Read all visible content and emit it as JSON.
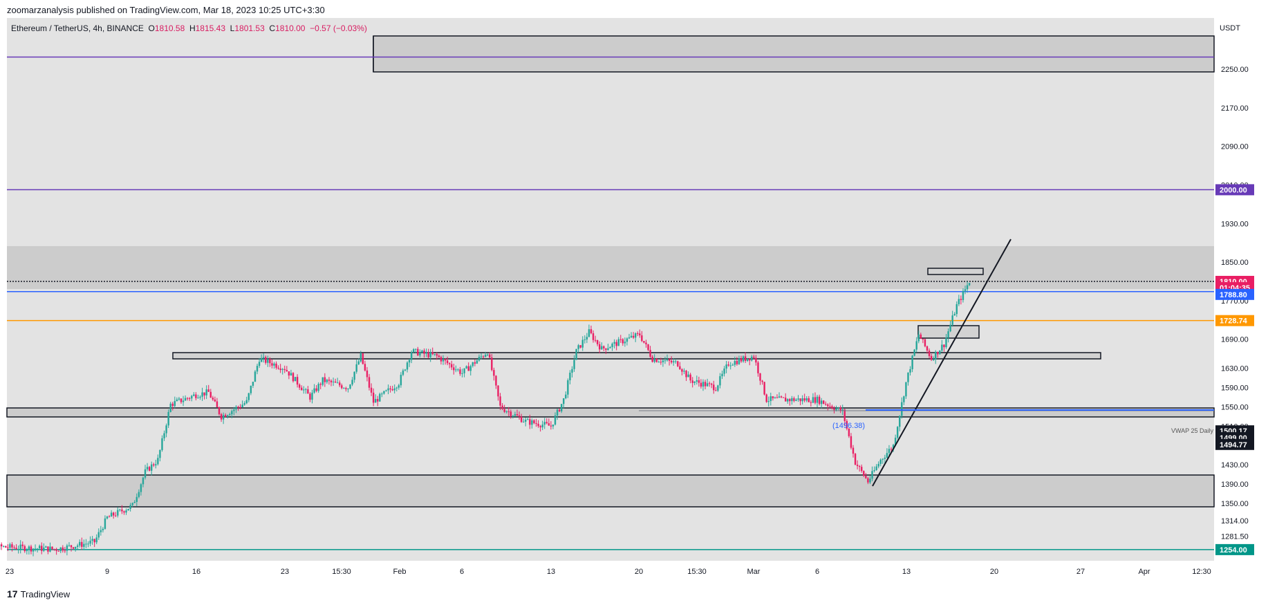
{
  "header": {
    "publisher": "zoomarzanalysis published on TradingView.com, Mar 18, 2023 10:25 UTC+3:30"
  },
  "symbol": {
    "name": "Ethereum / TetherUS, 4h, BINANCE",
    "open_label": "O",
    "open": "1810.58",
    "high_label": "H",
    "high": "1815.43",
    "low_label": "L",
    "low": "1801.53",
    "close_label": "C",
    "close": "1810.00",
    "change": "−0.57 (−0.03%)"
  },
  "footer": {
    "brand": "TradingView",
    "logo_text": "17"
  },
  "colors": {
    "bull": "#26a69a",
    "bear": "#e91e63",
    "bg": "#e3e3e3",
    "zone": "#cccccc",
    "purple": "#673ab7",
    "orange": "#ff9800",
    "blue": "#2962ff",
    "teal": "#009688"
  },
  "chart_data": {
    "type": "candlestick",
    "currency": "USDT",
    "y_ticks": [
      "2250.00",
      "2170.00",
      "2090.00",
      "2010.00",
      "1930.00",
      "1850.00",
      "1770.00",
      "1690.00",
      "1630.00",
      "1590.00",
      "1550.00",
      "1510.00",
      "1430.00",
      "1390.00",
      "1350.00",
      "1314.00",
      "1281.50"
    ],
    "y_tick_values": [
      2250,
      2170,
      2090,
      2010,
      1930,
      1850,
      1770,
      1690,
      1630,
      1590,
      1550,
      1510,
      1430,
      1390,
      1350,
      1314,
      1281.5
    ],
    "x_ticks": [
      "23",
      "9",
      "16",
      "23",
      "15:30",
      "Feb",
      "6",
      "13",
      "20",
      "15:30",
      "Mar",
      "6",
      "13",
      "20",
      "27",
      "Apr",
      "12:30"
    ],
    "price_tags": [
      {
        "value": "2000.00",
        "price": 2000,
        "color": "#673ab7"
      },
      {
        "value": "1810.00",
        "price": 1810,
        "color": "#e91e63"
      },
      {
        "value": "01:04:35",
        "price": 1797,
        "color": "#e91e63"
      },
      {
        "value": "1788.80",
        "price": 1783,
        "color": "#2962ff"
      },
      {
        "value": "1728.74",
        "price": 1728.74,
        "color": "#ff9800"
      },
      {
        "value": "1500.17",
        "price": 1500.17,
        "color": "#131722"
      },
      {
        "value": "1499.00",
        "price": 1486,
        "color": "#131722"
      },
      {
        "value": "1494.77",
        "price": 1472,
        "color": "#131722"
      },
      {
        "value": "1254.00",
        "price": 1254,
        "color": "#009688"
      }
    ],
    "horizontal_lines": [
      {
        "price": 2275,
        "color": "#673ab7"
      },
      {
        "price": 2000,
        "color": "#673ab7"
      },
      {
        "price": 1810,
        "color": "#131722",
        "dashed": true
      },
      {
        "price": 1788.8,
        "color": "#2962ff"
      },
      {
        "price": 1728.74,
        "color": "#ff9800"
      },
      {
        "price": 1254,
        "color": "#009688"
      }
    ],
    "annotations": [
      {
        "text": "(1496.38)",
        "price": 1506,
        "color": "#2962ff"
      },
      {
        "text": "VWAP 25 Daily",
        "price": 1496
      }
    ],
    "price_path": [
      {
        "x": "Dec 29",
        "y": 1262
      },
      {
        "x": "Jan 5",
        "y": 1255
      },
      {
        "x": "Jan 8",
        "y": 1270
      },
      {
        "x": "Jan 9",
        "y": 1320
      },
      {
        "x": "Jan 11",
        "y": 1345
      },
      {
        "x": "Jan 12",
        "y": 1415
      },
      {
        "x": "Jan 13",
        "y": 1440
      },
      {
        "x": "Jan 14",
        "y": 1555
      },
      {
        "x": "Jan 16",
        "y": 1575
      },
      {
        "x": "Jan 17",
        "y": 1580
      },
      {
        "x": "Jan 18",
        "y": 1530
      },
      {
        "x": "Jan 20",
        "y": 1560
      },
      {
        "x": "Jan 21",
        "y": 1650
      },
      {
        "x": "Jan 23",
        "y": 1630
      },
      {
        "x": "Jan 25",
        "y": 1570
      },
      {
        "x": "Jan 26",
        "y": 1605
      },
      {
        "x": "Jan 28",
        "y": 1590
      },
      {
        "x": "Jan 29",
        "y": 1655
      },
      {
        "x": "Jan 30",
        "y": 1560
      },
      {
        "x": "Feb 1",
        "y": 1600
      },
      {
        "x": "Feb 2",
        "y": 1665
      },
      {
        "x": "Feb 4",
        "y": 1655
      },
      {
        "x": "Feb 6",
        "y": 1620
      },
      {
        "x": "Feb 8",
        "y": 1665
      },
      {
        "x": "Feb 9",
        "y": 1550
      },
      {
        "x": "Feb 11",
        "y": 1520
      },
      {
        "x": "Feb 13",
        "y": 1510
      },
      {
        "x": "Feb 14",
        "y": 1565
      },
      {
        "x": "Feb 15",
        "y": 1665
      },
      {
        "x": "Feb 16",
        "y": 1705
      },
      {
        "x": "Feb 17",
        "y": 1670
      },
      {
        "x": "Feb 19",
        "y": 1690
      },
      {
        "x": "Feb 20",
        "y": 1700
      },
      {
        "x": "Feb 21",
        "y": 1650
      },
      {
        "x": "Feb 23",
        "y": 1640
      },
      {
        "x": "Feb 24",
        "y": 1605
      },
      {
        "x": "Feb 26",
        "y": 1590
      },
      {
        "x": "Feb 27",
        "y": 1640
      },
      {
        "x": "Mar 1",
        "y": 1655
      },
      {
        "x": "Mar 2",
        "y": 1565
      },
      {
        "x": "Mar 4",
        "y": 1565
      },
      {
        "x": "Mar 6",
        "y": 1565
      },
      {
        "x": "Mar 8",
        "y": 1540
      },
      {
        "x": "Mar 9",
        "y": 1435
      },
      {
        "x": "Mar 10",
        "y": 1395
      },
      {
        "x": "Mar 11",
        "y": 1440
      },
      {
        "x": "Mar 12",
        "y": 1470
      },
      {
        "x": "Mar 13",
        "y": 1600
      },
      {
        "x": "Mar 14",
        "y": 1700
      },
      {
        "x": "Mar 15",
        "y": 1650
      },
      {
        "x": "Mar 16",
        "y": 1680
      },
      {
        "x": "Mar 17",
        "y": 1760
      },
      {
        "x": "Mar 18",
        "y": 1810
      }
    ]
  }
}
